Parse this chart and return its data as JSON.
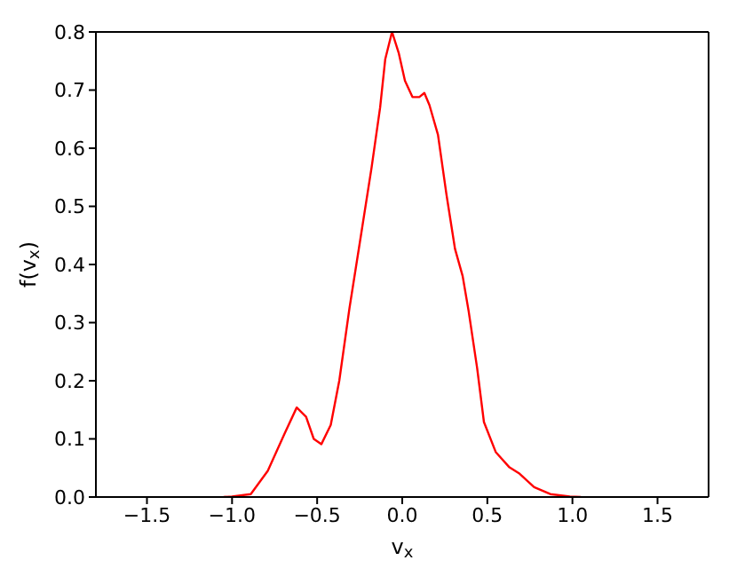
{
  "chart_data": {
    "type": "line",
    "xlabel": "v$_{x}$",
    "ylabel": "f(v$_{x}$)",
    "xlim": [
      -1.8,
      1.8
    ],
    "ylim": [
      0,
      0.8
    ],
    "xticks": [
      {
        "value": -1.5,
        "label": "−1.5"
      },
      {
        "value": -1.0,
        "label": "−1.0"
      },
      {
        "value": -0.5,
        "label": "−0.5"
      },
      {
        "value": 0,
        "label": "0.0"
      },
      {
        "value": 0.5,
        "label": "0.5"
      },
      {
        "value": 1.0,
        "label": "1.0"
      },
      {
        "value": 1.5,
        "label": "1.5"
      }
    ],
    "yticks": [
      {
        "value": 0,
        "label": "0.0"
      },
      {
        "value": 0.1,
        "label": "0.1"
      },
      {
        "value": 0.2,
        "label": "0.2"
      },
      {
        "value": 0.3,
        "label": "0.3"
      },
      {
        "value": 0.4,
        "label": "0.4"
      },
      {
        "value": 0.5,
        "label": "0.5"
      },
      {
        "value": 0.6,
        "label": "0.6"
      },
      {
        "value": 0.7,
        "label": "0.7"
      },
      {
        "value": 0.8,
        "label": "0.8"
      }
    ],
    "grid": false,
    "legend": false,
    "marker": "none",
    "line_style": "solid",
    "x": [
      -1.05,
      -1.0,
      -0.89,
      -0.79,
      -0.69,
      -0.62,
      -0.565,
      -0.52,
      -0.475,
      -0.42,
      -0.37,
      -0.31,
      -0.24,
      -0.18,
      -0.13,
      -0.1,
      -0.06,
      -0.02,
      0.016,
      0.06,
      0.1,
      0.13,
      0.16,
      0.21,
      0.26,
      0.31,
      0.355,
      0.39,
      0.44,
      0.48,
      0.55,
      0.63,
      0.69,
      0.775,
      0.87,
      0.985,
      1.05
    ],
    "series": [
      {
        "color": "#ff0000",
        "values": [
          0,
          0.001,
          0.005,
          0.045,
          0.11,
          0.154,
          0.138,
          0.1,
          0.091,
          0.124,
          0.2,
          0.325,
          0.455,
          0.567,
          0.67,
          0.753,
          0.8,
          0.763,
          0.716,
          0.688,
          0.688,
          0.695,
          0.674,
          0.623,
          0.52,
          0.427,
          0.38,
          0.32,
          0.222,
          0.129,
          0.077,
          0.051,
          0.04,
          0.017,
          0.005,
          0.001,
          0
        ]
      }
    ]
  }
}
